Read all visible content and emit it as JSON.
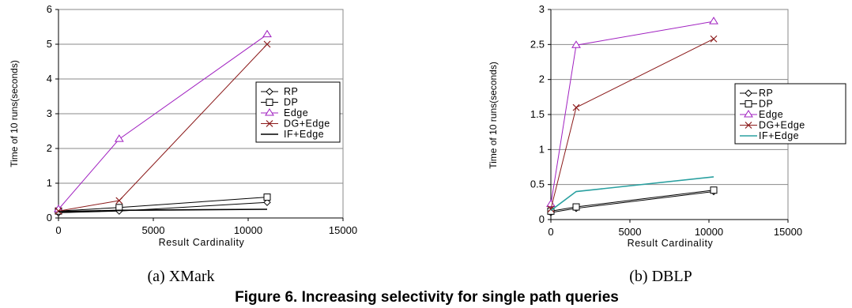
{
  "figure": {
    "caption": "Figure 6. Increasing selectivity for single path queries"
  },
  "chart_data": [
    {
      "type": "line",
      "subcaption": "(a) XMark",
      "xlabel": "Result Cardinality",
      "ylabel": "Time of 10 runs(seconds)",
      "xlim": [
        0,
        15000
      ],
      "ylim": [
        0,
        6
      ],
      "xticks": [
        0,
        5000,
        10000,
        15000
      ],
      "yticks": [
        0,
        1,
        2,
        3,
        4,
        5,
        6
      ],
      "grid": "horizontal",
      "legend_placement": "right",
      "series": [
        {
          "name": "RP",
          "marker": "diamond",
          "color": "#000000",
          "x": [
            0,
            3200,
            11000
          ],
          "y": [
            0.15,
            0.2,
            0.45
          ]
        },
        {
          "name": "DP",
          "marker": "square",
          "color": "#000000",
          "x": [
            0,
            3200,
            11000
          ],
          "y": [
            0.2,
            0.3,
            0.6
          ]
        },
        {
          "name": "Edge",
          "marker": "triangle",
          "color": "#a020c0",
          "x": [
            0,
            3200,
            11000
          ],
          "y": [
            0.25,
            2.27,
            5.28
          ]
        },
        {
          "name": "DG+Edge",
          "marker": "x",
          "color": "#8b1a1a",
          "x": [
            0,
            3200,
            11000
          ],
          "y": [
            0.2,
            0.5,
            5.0
          ]
        },
        {
          "name": "IF+Edge",
          "marker": "none",
          "color": "#000000",
          "x": [
            0,
            3200,
            11000
          ],
          "y": [
            0.18,
            0.22,
            0.25
          ]
        }
      ]
    },
    {
      "type": "line",
      "subcaption": "(b) DBLP",
      "xlabel": "Result Cardinality",
      "ylabel": "Time of 10 runs(seconds)",
      "xlim": [
        0,
        15000
      ],
      "ylim": [
        0,
        3
      ],
      "xticks": [
        0,
        5000,
        10000,
        15000
      ],
      "yticks": [
        0,
        0.5,
        1,
        1.5,
        2,
        2.5,
        3
      ],
      "grid": "horizontal",
      "legend_placement": "right",
      "series": [
        {
          "name": "RP",
          "marker": "diamond",
          "color": "#000000",
          "x": [
            0,
            1600,
            10300
          ],
          "y": [
            0.1,
            0.16,
            0.4
          ]
        },
        {
          "name": "DP",
          "marker": "square",
          "color": "#000000",
          "x": [
            0,
            1600,
            10300
          ],
          "y": [
            0.12,
            0.18,
            0.42
          ]
        },
        {
          "name": "Edge",
          "marker": "triangle",
          "color": "#a020c0",
          "x": [
            0,
            1600,
            10300
          ],
          "y": [
            0.22,
            2.49,
            2.83
          ]
        },
        {
          "name": "DG+Edge",
          "marker": "x",
          "color": "#8b1a1a",
          "x": [
            0,
            1600,
            10300
          ],
          "y": [
            0.15,
            1.6,
            2.58
          ]
        },
        {
          "name": "IF+Edge",
          "marker": "none",
          "color": "#2aa0a0",
          "x": [
            0,
            1600,
            10300
          ],
          "y": [
            0.13,
            0.4,
            0.61
          ]
        }
      ]
    }
  ]
}
